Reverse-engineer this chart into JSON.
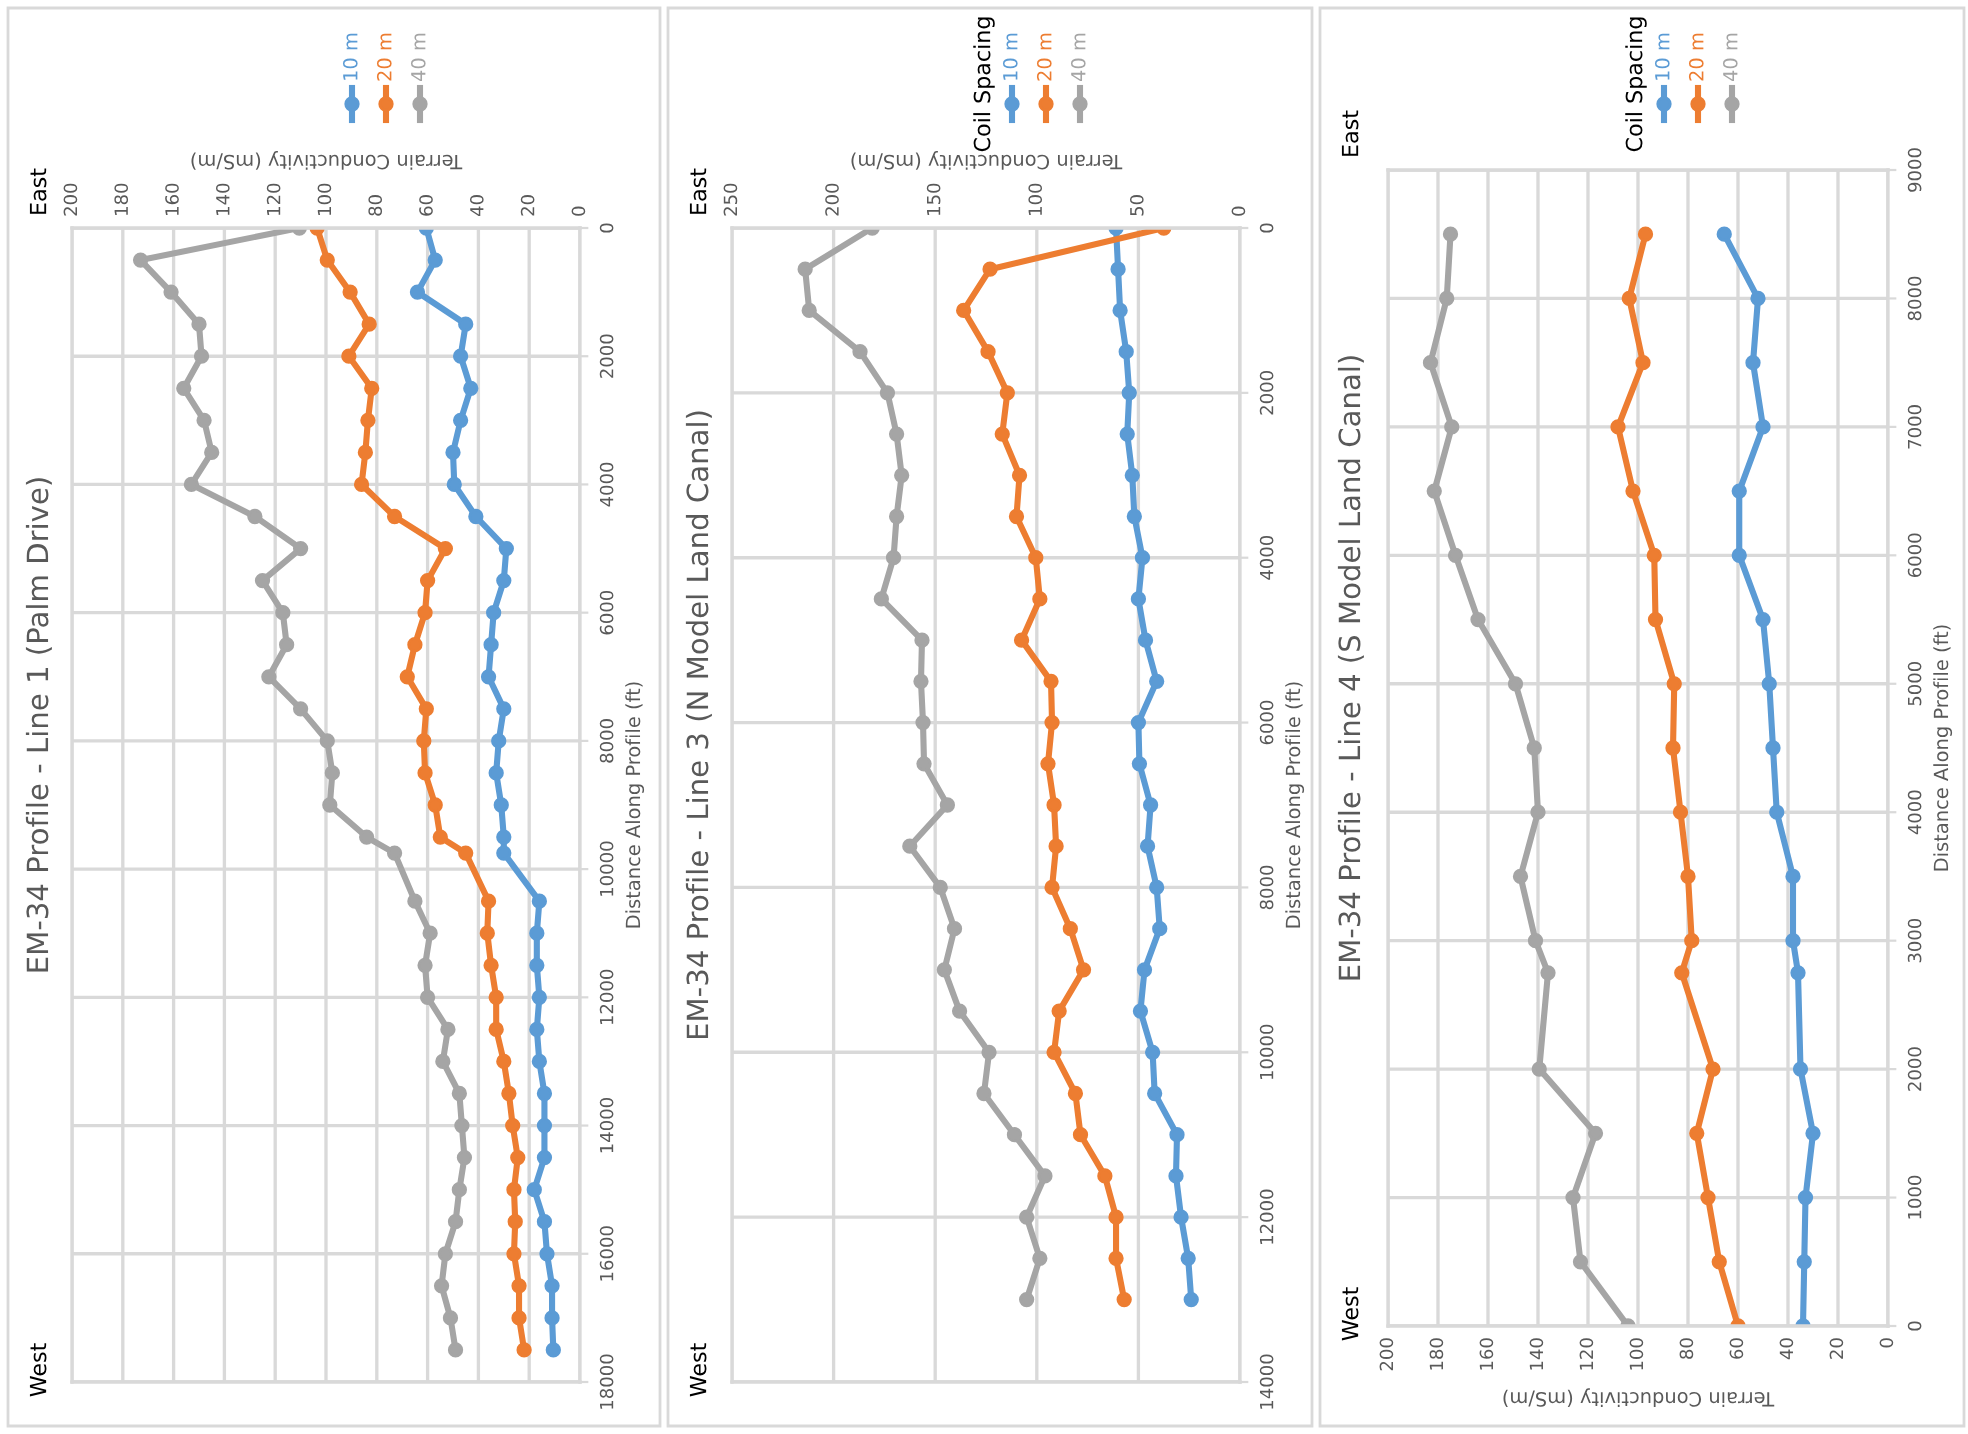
{
  "chart_data": [
    {
      "type": "line",
      "title": "EM-34 Profile - Line 1 (Palm Drive)",
      "xlabel": "Terrain Conductivity (mS/m)",
      "ylabel": "Distance Along Profile (ft)",
      "annotations": [
        "East",
        "West"
      ],
      "series": [
        {
          "name": "10 m",
          "color": "#5b9bd5",
          "x": [
            60.5,
            57,
            64,
            45,
            47,
            43,
            47,
            50,
            49.5,
            41,
            29,
            30,
            34,
            35,
            36,
            30,
            32,
            33,
            31,
            30,
            30,
            16,
            17,
            17,
            16,
            17,
            16,
            14,
            14,
            14,
            18,
            14,
            13,
            11,
            11,
            10.5
          ],
          "values": [
            0,
            500,
            1000,
            1500,
            2000,
            2500,
            3000,
            3500,
            4000,
            4500,
            5000,
            5500,
            6000,
            6500,
            7000,
            7500,
            8000,
            8500,
            9000,
            9500,
            9750,
            10500,
            11000,
            11500,
            12000,
            12500,
            13000,
            13500,
            14000,
            14500,
            15000,
            15500,
            16000,
            16500,
            17000,
            17500
          ]
        },
        {
          "name": "20 m",
          "color": "#ed7d31",
          "x": [
            103.5,
            99.5,
            90.5,
            83,
            91,
            82,
            83.5,
            84.5,
            86,
            73,
            53,
            60,
            61,
            65,
            68,
            60.5,
            61.5,
            61,
            57,
            55,
            45,
            36,
            36.5,
            35,
            33,
            33,
            30,
            28,
            26.5,
            24.5,
            26,
            25.5,
            26,
            24,
            24,
            22
          ],
          "values": [
            0,
            500,
            1000,
            1500,
            2000,
            2500,
            3000,
            3500,
            4000,
            4500,
            5000,
            5500,
            6000,
            6500,
            7000,
            7500,
            8000,
            8500,
            9000,
            9500,
            9750,
            10500,
            11000,
            11500,
            12000,
            12500,
            13000,
            13500,
            14000,
            14500,
            15000,
            15500,
            16000,
            16500,
            17000,
            17500
          ]
        },
        {
          "name": "40 m",
          "color": "#a5a5a5",
          "x": [
            110.5,
            173,
            161,
            150,
            149,
            156,
            148,
            145,
            153,
            128,
            110,
            125,
            117,
            115.5,
            122.5,
            110,
            99.5,
            97.5,
            98.5,
            84,
            73,
            65,
            59,
            61,
            60,
            52,
            54,
            47.5,
            46.5,
            45.5,
            47.5,
            49,
            53,
            54.5,
            51,
            49
          ],
          "values": [
            0,
            500,
            1000,
            1500,
            2000,
            2500,
            3000,
            3500,
            4000,
            4500,
            5000,
            5500,
            6000,
            6500,
            7000,
            7500,
            8000,
            8500,
            9000,
            9500,
            9750,
            10500,
            11000,
            11500,
            12000,
            12500,
            13000,
            13500,
            14000,
            14500,
            15000,
            15500,
            16000,
            16500,
            17000,
            17500
          ]
        }
      ],
      "xlim": [
        200,
        0
      ],
      "xticks": [
        0,
        20,
        40,
        60,
        80,
        100,
        120,
        140,
        160,
        180,
        200
      ],
      "ylim": [
        18000,
        0
      ],
      "yticks": [
        0,
        2000,
        4000,
        6000,
        8000,
        10000,
        12000,
        14000,
        16000,
        18000
      ],
      "grid": true,
      "legend": "top",
      "marker": "circle",
      "line_style": "solid"
    },
    {
      "type": "line",
      "title": "EM-34 Profile - Line 3 (N Model Land Canal)",
      "xlabel": "Terrain Conductivity (mS/m)",
      "ylabel": "Distance Along Profile (ft)",
      "legend_title": "Coil Spacing",
      "annotations": [
        "East",
        "West"
      ],
      "series": [
        {
          "name": "10 m",
          "color": "#5b9bd5",
          "x": [
            61,
            60,
            59,
            56,
            54.5,
            55.5,
            53,
            52,
            48,
            50,
            46.5,
            41,
            50,
            49.5,
            44,
            45.5,
            41,
            39.5,
            47,
            49,
            43,
            42,
            31,
            31.5,
            29,
            25.5,
            24
          ],
          "values": [
            0,
            500,
            1000,
            1500,
            2000,
            2500,
            3000,
            3500,
            4000,
            4500,
            5000,
            5500,
            6000,
            6500,
            7000,
            7500,
            8000,
            8500,
            9000,
            9500,
            10000,
            10500,
            11000,
            11500,
            12000,
            12500,
            13000
          ]
        },
        {
          "name": "20 m",
          "color": "#ed7d31",
          "x": [
            37.5,
            123,
            136,
            124,
            114.5,
            117,
            108.5,
            110,
            100.5,
            98.5,
            107.5,
            93,
            92.5,
            94.5,
            91.5,
            90.5,
            92.5,
            83.5,
            77,
            89,
            91.5,
            81,
            78.5,
            66.5,
            61,
            61,
            57
          ],
          "values": [
            0,
            500,
            1000,
            1500,
            2000,
            2500,
            3000,
            3500,
            4000,
            4500,
            5000,
            5500,
            6000,
            6500,
            7000,
            7500,
            8000,
            8500,
            9000,
            9500,
            10000,
            10500,
            11000,
            11500,
            12000,
            12500,
            13000
          ]
        },
        {
          "name": "40 m",
          "color": "#a5a5a5",
          "x": [
            181,
            214,
            212,
            187,
            173.5,
            169,
            166.5,
            169,
            170.5,
            176.5,
            156.5,
            157,
            156,
            155.5,
            144,
            162.5,
            147.5,
            140.5,
            145.5,
            138,
            123.5,
            126,
            111,
            96,
            105,
            98.5,
            105
          ],
          "values": [
            0,
            500,
            1000,
            1500,
            2000,
            2500,
            3000,
            3500,
            4000,
            4500,
            5000,
            5500,
            6000,
            6500,
            7000,
            7500,
            8000,
            8500,
            9000,
            9500,
            10000,
            10500,
            11000,
            11500,
            12000,
            12500,
            13000
          ]
        }
      ],
      "xlim": [
        250,
        0
      ],
      "xticks": [
        0,
        50,
        100,
        150,
        200,
        250
      ],
      "ylim": [
        14000,
        0
      ],
      "yticks": [
        0,
        2000,
        4000,
        6000,
        8000,
        10000,
        12000,
        14000
      ],
      "grid": true,
      "legend": "top",
      "marker": "circle",
      "line_style": "solid"
    },
    {
      "type": "line",
      "title": "EM-34 Profile - Line 4 (S Model Land Canal)",
      "xlabel": "Terrain Conductivity (mS/m)",
      "ylabel": "Distance Along Profile (ft)",
      "legend_title": "Coil Spacing",
      "annotations": [
        "East",
        "West"
      ],
      "series": [
        {
          "name": "10 m",
          "color": "#5b9bd5",
          "x": [
            34,
            33.5,
            33,
            30,
            35,
            36,
            38,
            38,
            44.5,
            46,
            47.5,
            50,
            59.5,
            59.5,
            50,
            54,
            52,
            65.5
          ],
          "values": [
            0,
            500,
            1000,
            1500,
            2000,
            2750,
            3000,
            3500,
            4000,
            4500,
            5000,
            5500,
            6000,
            6500,
            7000,
            7500,
            8000,
            8500
          ]
        },
        {
          "name": "20 m",
          "color": "#ed7d31",
          "x": [
            60,
            67.5,
            72,
            76.5,
            70,
            82.5,
            78.5,
            80,
            83,
            86,
            85.5,
            93,
            93.5,
            102,
            108,
            98,
            103.5,
            97
          ],
          "values": [
            0,
            500,
            1000,
            1500,
            2000,
            2750,
            3000,
            3500,
            4000,
            4500,
            5000,
            5500,
            6000,
            6500,
            7000,
            7500,
            8000,
            8500
          ]
        },
        {
          "name": "40 m",
          "color": "#a5a5a5",
          "x": [
            104,
            123,
            126,
            117,
            139.5,
            136,
            141,
            147,
            140,
            141.5,
            149,
            164,
            173,
            181.5,
            174.5,
            183,
            176.5,
            175
          ],
          "values": [
            0,
            500,
            1000,
            1500,
            2000,
            2750,
            3000,
            3500,
            4000,
            4500,
            5000,
            5500,
            6000,
            6500,
            7000,
            7500,
            8000,
            8500
          ]
        }
      ],
      "xlim": [
        200,
        0
      ],
      "xticks": [
        0,
        20,
        40,
        60,
        80,
        100,
        120,
        140,
        160,
        180,
        200
      ],
      "ylim": [
        0,
        9000
      ],
      "yticks": [
        0,
        1000,
        2000,
        3000,
        4000,
        5000,
        6000,
        7000,
        8000,
        9000
      ],
      "grid": true,
      "legend": "top",
      "marker": "circle",
      "line_style": "solid"
    }
  ]
}
